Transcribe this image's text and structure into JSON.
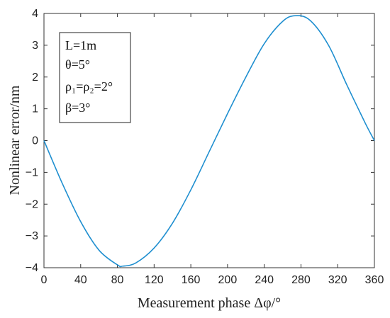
{
  "chart_data": {
    "type": "line",
    "title": "",
    "xlabel": "Measurement phase Δφ/°",
    "ylabel": "Nonlinear error/nm",
    "xlim": [
      0,
      360
    ],
    "ylim": [
      -4,
      4
    ],
    "x_ticks": [
      "0",
      "40",
      "80",
      "120",
      "160",
      "200",
      "240",
      "280",
      "320",
      "360"
    ],
    "y_ticks": [
      "−4",
      "−3",
      "−2",
      "−1",
      "0",
      "1",
      "2",
      "3",
      "4"
    ],
    "grid": false,
    "legend_position": "top-left",
    "series": [
      {
        "color": "#1f8fd0",
        "x": [
          0,
          20,
          40,
          60,
          80,
          86,
          100,
          120,
          140,
          160,
          180,
          200,
          220,
          240,
          260,
          274,
          290,
          310,
          330,
          350,
          360
        ],
        "y": [
          0,
          -1.35,
          -2.55,
          -3.45,
          -3.91,
          -3.95,
          -3.85,
          -3.38,
          -2.6,
          -1.55,
          -0.35,
          0.85,
          2.0,
          3.05,
          3.75,
          3.93,
          3.78,
          3.0,
          1.75,
          0.55,
          0
        ]
      }
    ],
    "annotation_lines": [
      "L=1m",
      "θ=5°",
      "ρ₁=ρ₂=2°",
      "β=3°"
    ]
  }
}
